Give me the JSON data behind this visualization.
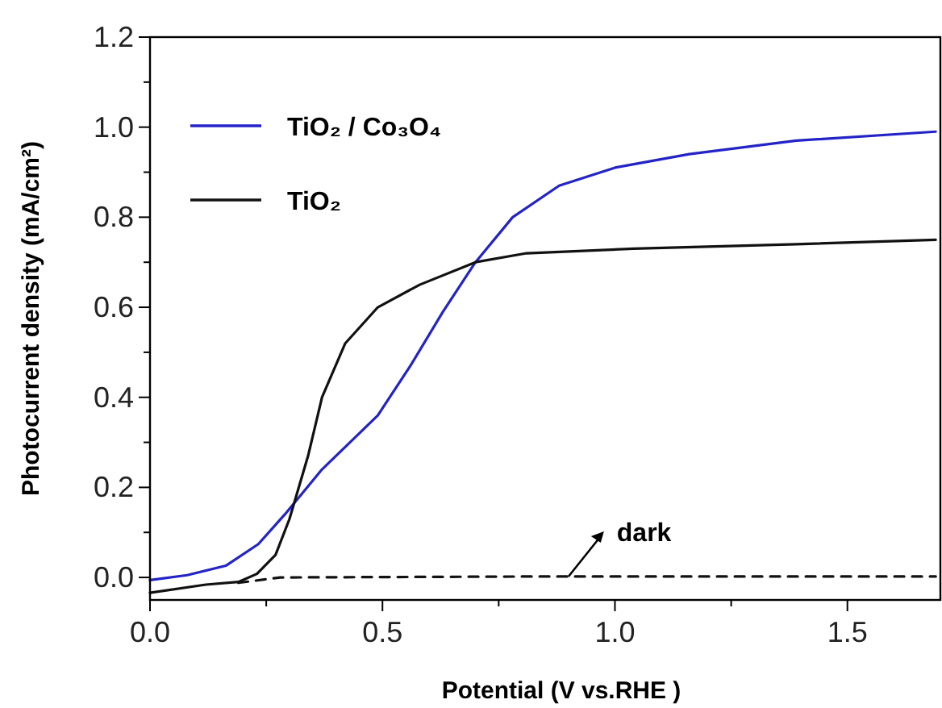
{
  "chart_data": {
    "type": "line",
    "xlabel": "Potential (V vs.RHE )",
    "ylabel": "Photocurrent density (mA/cm²)",
    "xlim": [
      0,
      1.7
    ],
    "ylim": [
      -0.05,
      1.2
    ],
    "xticks": [
      {
        "value": 0,
        "label": "0.0"
      },
      {
        "value": 0.25,
        "label": null
      },
      {
        "value": 0.5,
        "label": "0.5"
      },
      {
        "value": 0.75,
        "label": null
      },
      {
        "value": 1,
        "label": "1.0"
      },
      {
        "value": 1.25,
        "label": null
      },
      {
        "value": 1.5,
        "label": "1.5"
      }
    ],
    "yticks": [
      {
        "value": 0,
        "label": "0.0"
      },
      {
        "value": 0.1,
        "label": null
      },
      {
        "value": 0.2,
        "label": "0.2"
      },
      {
        "value": 0.3,
        "label": null
      },
      {
        "value": 0.4,
        "label": "0.4"
      },
      {
        "value": 0.5,
        "label": null
      },
      {
        "value": 0.6,
        "label": "0.6"
      },
      {
        "value": 0.7,
        "label": null
      },
      {
        "value": 0.8,
        "label": "0.8"
      },
      {
        "value": 0.9,
        "label": null
      },
      {
        "value": 1,
        "label": "1.0"
      },
      {
        "value": 1.1,
        "label": null
      },
      {
        "value": 1.2,
        "label": "1.2"
      }
    ],
    "legend": "top left",
    "grid": false,
    "series": [
      {
        "name": "TiO₂ / Co₃O₄",
        "color": "#2323c8",
        "line_style": "solid",
        "x": [
          0,
          0.08,
          0.163,
          0.233,
          0.29,
          0.37,
          0.49,
          0.56,
          0.63,
          0.7,
          0.78,
          0.88,
          1.0,
          1.16,
          1.39,
          1.69
        ],
        "values": [
          -0.006,
          0.005,
          0.026,
          0.074,
          0.14,
          0.24,
          0.36,
          0.47,
          0.59,
          0.7,
          0.8,
          0.87,
          0.91,
          0.94,
          0.97,
          0.99
        ]
      },
      {
        "name": "TiO₂",
        "color": "#111111",
        "line_style": "solid",
        "x": [
          0,
          0.12,
          0.19,
          0.23,
          0.27,
          0.3,
          0.34,
          0.37,
          0.42,
          0.49,
          0.58,
          0.7,
          0.81,
          1.04,
          1.39,
          1.69
        ],
        "values": [
          -0.034,
          -0.016,
          -0.01,
          0.008,
          0.05,
          0.13,
          0.27,
          0.4,
          0.52,
          0.6,
          0.65,
          0.7,
          0.72,
          0.73,
          0.74,
          0.75
        ]
      },
      {
        "color": "#111111",
        "line_style": "dashed",
        "x": [
          0.19,
          0.28,
          0.8,
          1.69
        ],
        "values": [
          -0.012,
          0,
          0.002,
          0.002
        ]
      }
    ],
    "annotations": [
      {
        "text": "dark",
        "x": 0.9,
        "y": 0.002
      }
    ]
  }
}
